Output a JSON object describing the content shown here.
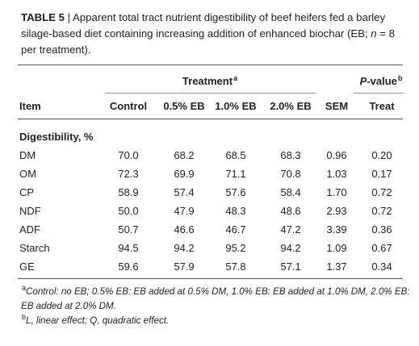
{
  "caption": {
    "label": "TABLE 5",
    "separator": " | ",
    "text_a": "Apparent total tract nutrient digestibility of beef heifers fed a barley silage-based diet containing increasing addition of enhanced biochar (EB; ",
    "n_symbol": "n",
    "text_b": " = 8 per treatment)."
  },
  "header": {
    "treatment": "Treatment",
    "treatment_sup": "a",
    "pvalue_italic": "P",
    "pvalue_rest": "-value",
    "pvalue_sup": "b",
    "columns": [
      "Item",
      "Control",
      "0.5% EB",
      "1.0% EB",
      "2.0% EB",
      "SEM",
      "Treat"
    ]
  },
  "section": "Digestibility, %",
  "rows": [
    {
      "item": "DM",
      "values": [
        "70.0",
        "68.2",
        "68.5",
        "68.3",
        "0.96",
        "0.20"
      ]
    },
    {
      "item": "OM",
      "values": [
        "72.3",
        "69.9",
        "71.1",
        "70.8",
        "1.03",
        "0.17"
      ]
    },
    {
      "item": "CP",
      "values": [
        "58.9",
        "57.4",
        "57.6",
        "58.4",
        "1.70",
        "0.72"
      ]
    },
    {
      "item": "NDF",
      "values": [
        "50.0",
        "47.9",
        "48.3",
        "48.6",
        "2.93",
        "0.72"
      ]
    },
    {
      "item": "ADF",
      "values": [
        "50.7",
        "46.6",
        "46.7",
        "47.2",
        "3.39",
        "0.36"
      ]
    },
    {
      "item": "Starch",
      "values": [
        "94.5",
        "94.2",
        "95.2",
        "94.2",
        "1.09",
        "0.67"
      ]
    },
    {
      "item": "GE",
      "values": [
        "59.6",
        "57.9",
        "57.8",
        "57.1",
        "1.37",
        "0.34"
      ]
    }
  ],
  "footnotes": {
    "a_sup": "a",
    "a_text": "Control: no EB; 0.5% EB: EB added at 0.5% DM, 1.0% EB: EB added at 1.0% DM, 2.0% EB: EB added at 2.0% DM.",
    "b_sup": "b",
    "b_text": "L, linear effect; Q, quadratic effect."
  }
}
